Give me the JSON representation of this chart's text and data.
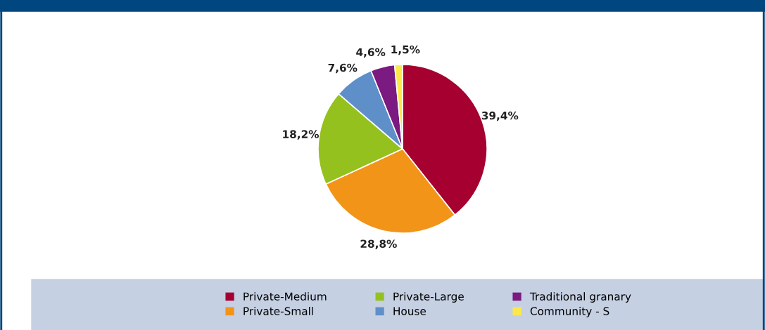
{
  "chart_data": {
    "type": "pie",
    "categories": [
      "Private-Medium",
      "Private-Small",
      "Private-Large",
      "House",
      "Traditional granary",
      "Community - S"
    ],
    "values": [
      39.4,
      28.8,
      18.2,
      7.6,
      4.6,
      1.5
    ],
    "value_labels": [
      "39,4%",
      "28,8%",
      "18,2%",
      "7,6%",
      "4,6%",
      "1,5%"
    ],
    "colors": [
      "#a50030",
      "#f29418",
      "#95c11f",
      "#5e8fc9",
      "#7b1a80",
      "#fde84a"
    ],
    "legend": "bottom"
  }
}
